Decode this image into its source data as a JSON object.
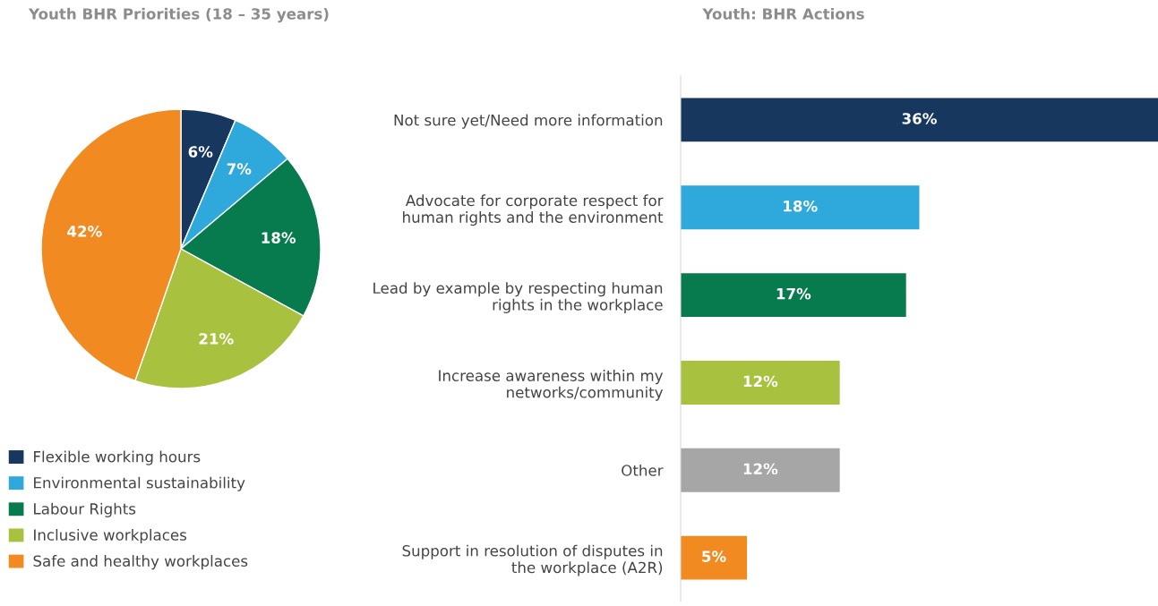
{
  "chart_data": [
    {
      "type": "pie",
      "title": "Youth BHR Priorities (18 – 35 years)",
      "categories": [
        "Flexible working hours",
        "Environmental sustainability",
        "Labour Rights",
        "Inclusive workplaces",
        "Safe and healthy workplaces"
      ],
      "values": [
        6,
        7,
        18,
        21,
        42
      ],
      "value_labels": [
        "6%",
        "7%",
        "18%",
        "21%",
        "42%"
      ],
      "colors": [
        "#17375e",
        "#2fa8dc",
        "#077a4e",
        "#a8c23f",
        "#f28a22"
      ],
      "legend": "bottom"
    },
    {
      "type": "bar",
      "orientation": "horizontal",
      "title": "Youth: BHR Actions",
      "categories": [
        "Not sure yet/Need more information",
        "Advocate for corporate respect for human rights and the environment",
        "Lead by example by respecting human rights in the workplace",
        "Increase awareness within my networks/community",
        "Other",
        "Support in resolution of disputes in the workplace (A2R)"
      ],
      "values": [
        36,
        18,
        17,
        12,
        12,
        5
      ],
      "value_labels": [
        "36%",
        "18%",
        "17%",
        "12%",
        "12%",
        "5%"
      ],
      "colors": [
        "#17375e",
        "#2fa8dc",
        "#077a4e",
        "#a8c23f",
        "#a6a6a6",
        "#f28a22"
      ]
    }
  ]
}
